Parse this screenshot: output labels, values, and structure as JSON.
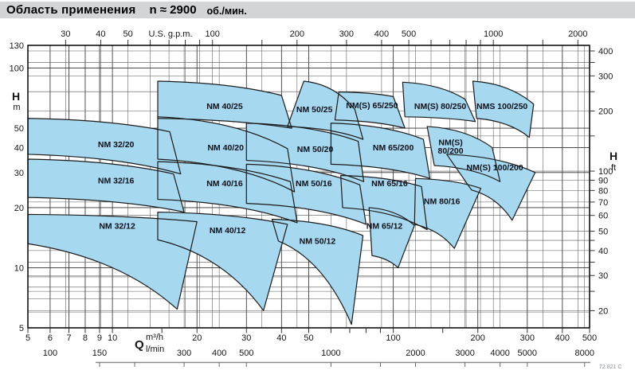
{
  "title": {
    "text": "Область применения",
    "n": "n ≈ 2900",
    "unit": "об./мин."
  },
  "footnote": "72.821 C",
  "chart_data": {
    "type": "area",
    "title": "Область применения n ≈ 2900 об./мин.",
    "x_scale": "log",
    "y_scale": "log",
    "axes": {
      "top": {
        "label": "U.S. g.p.m.",
        "unit": "US gpm",
        "ticks": [
          30,
          40,
          50,
          60,
          70,
          80,
          90,
          100,
          150,
          200,
          300,
          400,
          500,
          600,
          700,
          800,
          900,
          1000,
          1500,
          2000
        ],
        "labeled": [
          30,
          40,
          50,
          100,
          200,
          300,
          400,
          500,
          1000,
          2000
        ]
      },
      "bottom_m3h": {
        "unit": "m³/h",
        "range": [
          5,
          500
        ],
        "ticks": [
          5,
          6,
          7,
          8,
          9,
          10,
          15,
          20,
          30,
          40,
          50,
          60,
          70,
          80,
          90,
          100,
          150,
          200,
          300,
          400,
          500
        ],
        "labeled": [
          5,
          6,
          7,
          8,
          9,
          10,
          20,
          30,
          40,
          50,
          100,
          200,
          300,
          400,
          500
        ]
      },
      "bottom_lmin": {
        "unit": "l/min",
        "labeled": [
          100,
          150,
          300,
          400,
          500,
          1000,
          2000,
          3000,
          4000,
          5000,
          8000
        ],
        "bar_ticks": [
          150,
          200,
          300,
          400,
          500,
          1000,
          1500,
          2000,
          3000,
          4000,
          5000,
          8000
        ]
      },
      "left_m": {
        "symbol": "H",
        "unit": "m",
        "range": [
          5,
          130
        ],
        "labeled": [
          5,
          10,
          20,
          30,
          40,
          50,
          100,
          130
        ],
        "minor": [
          6,
          7,
          8,
          9
        ]
      },
      "right_ft": {
        "symbol": "H",
        "unit": "ft",
        "ticks": [
          20,
          25,
          30,
          35,
          40,
          45,
          50,
          60,
          70,
          80,
          90,
          100,
          150,
          200,
          250,
          300,
          350,
          400
        ],
        "labeled": [
          20,
          30,
          40,
          50,
          60,
          70,
          80,
          90,
          100,
          200,
          300,
          400
        ]
      },
      "q_symbol": "Q"
    },
    "regions": [
      {
        "name": "NM 32/20",
        "labels": [
          "NM 32/20"
        ],
        "tl": [
          5,
          56
        ],
        "tr": [
          16,
          48
        ],
        "br": [
          17.5,
          29.5
        ],
        "bl": [
          5,
          37
        ],
        "pointed": false,
        "label_at": [
          10.3,
          41.5
        ]
      },
      {
        "name": "NM 32/16",
        "labels": [
          "NM 32/16"
        ],
        "tl": [
          5,
          35
        ],
        "tr": [
          16.5,
          29.5
        ],
        "br": [
          18,
          19
        ],
        "bl": [
          5,
          22.5
        ],
        "pointed": false,
        "label_at": [
          10.3,
          27.3
        ]
      },
      {
        "name": "NM 32/12",
        "labels": [
          "NM 32/12"
        ],
        "tl": [
          5,
          18.5
        ],
        "tr": [
          20,
          17
        ],
        "br": [
          17,
          6.2
        ],
        "bl": [
          5,
          13.2
        ],
        "pointed": true,
        "label_at": [
          10.4,
          16.2
        ]
      },
      {
        "name": "NM 40/25",
        "labels": [
          "NM 40/25"
        ],
        "tl": [
          14.5,
          86
        ],
        "tr": [
          40,
          73
        ],
        "br": [
          43.5,
          50
        ],
        "bl": [
          14.5,
          56
        ],
        "pointed": false,
        "label_at": [
          25.1,
          64.3
        ]
      },
      {
        "name": "NM 40/20",
        "labels": [
          "NM 40/20"
        ],
        "tl": [
          14.5,
          57
        ],
        "tr": [
          42,
          39.5
        ],
        "br": [
          44.5,
          24
        ],
        "bl": [
          14.5,
          35
        ],
        "pointed": false,
        "label_at": [
          25.3,
          40
        ]
      },
      {
        "name": "NM 40/16",
        "labels": [
          "NM 40/16"
        ],
        "tl": [
          14.5,
          34
        ],
        "tr": [
          43,
          27
        ],
        "br": [
          45.5,
          16.8
        ],
        "bl": [
          14.5,
          22
        ],
        "pointed": false,
        "label_at": [
          25.1,
          26.4
        ]
      },
      {
        "name": "NM 40/12",
        "labels": [
          "NM 40/12"
        ],
        "tl": [
          14.5,
          19
        ],
        "tr": [
          42,
          16.5
        ],
        "br": [
          34.5,
          6.1
        ],
        "bl": [
          14.5,
          13.8
        ],
        "pointed": true,
        "label_at": [
          25.7,
          15.4
        ]
      },
      {
        "name": "NM 50/25",
        "labels": [
          "NM 50/25"
        ],
        "tl": [
          48,
          86
        ],
        "tr": [
          73,
          62
        ],
        "br": [
          78,
          44
        ],
        "bl": [
          42,
          51
        ],
        "pointed": false,
        "label_at": [
          52.4,
          62
        ]
      },
      {
        "name": "NM 50/20",
        "labels": [
          "NM 50/20"
        ],
        "tl": [
          30,
          53
        ],
        "tr": [
          75,
          43
        ],
        "br": [
          78.5,
          27
        ],
        "bl": [
          30,
          34.5
        ],
        "pointed": false,
        "label_at": [
          52.7,
          39.2
        ]
      },
      {
        "name": "NM 50/16",
        "labels": [
          "NM 50/16"
        ],
        "tl": [
          30,
          33
        ],
        "tr": [
          76,
          26
        ],
        "br": [
          80,
          16.5
        ],
        "bl": [
          30,
          21
        ],
        "pointed": false,
        "label_at": [
          52.1,
          26.4
        ]
      },
      {
        "name": "NM 50/12",
        "labels": [
          "NM 50/12"
        ],
        "tl": [
          37,
          17.5
        ],
        "tr": [
          78,
          14.5
        ],
        "br": [
          71,
          5.2
        ],
        "bl": [
          39,
          13.6
        ],
        "pointed": true,
        "label_at": [
          53.7,
          13.6
        ]
      },
      {
        "name": "NM(S) 65/250",
        "labels": [
          "NM(S) 65/250"
        ],
        "tl": [
          64,
          76
        ],
        "tr": [
          100,
          72
        ],
        "br": [
          110,
          50
        ],
        "bl": [
          62,
          55
        ],
        "pointed": false,
        "label_at": [
          84,
          65
        ]
      },
      {
        "name": "NM 65/200",
        "labels": [
          "NM 65/200"
        ],
        "tl": [
          60,
          53
        ],
        "tr": [
          128,
          44
        ],
        "br": [
          135,
          28
        ],
        "bl": [
          60,
          33
        ],
        "pointed": false,
        "label_at": [
          100,
          40
        ]
      },
      {
        "name": "NM 65/16",
        "labels": [
          "NM 65/16"
        ],
        "tl": [
          65,
          29
        ],
        "tr": [
          126,
          25.5
        ],
        "br": [
          132,
          15.5
        ],
        "bl": [
          66,
          20
        ],
        "pointed": false,
        "label_at": [
          97,
          26.4
        ]
      },
      {
        "name": "NM 65/12",
        "labels": [
          "NM 65/12"
        ],
        "tl": [
          82,
          20
        ],
        "tr": [
          119,
          16.3
        ],
        "br": [
          104,
          10
        ],
        "bl": [
          84,
          11.5
        ],
        "pointed": true,
        "label_at": [
          93,
          16.2
        ]
      },
      {
        "name": "NM(S) 80/250",
        "labels": [
          "NM(S) 80/250"
        ],
        "tl": [
          108,
          85
        ],
        "tr": [
          180,
          70
        ],
        "br": [
          196,
          54
        ],
        "bl": [
          110,
          57
        ],
        "pointed": false,
        "label_at": [
          147,
          64.5
        ]
      },
      {
        "name": "NM(S) 80/200",
        "labels": [
          "NM(S)",
          "80/200"
        ],
        "tl": [
          132,
          51
        ],
        "tr": [
          225,
          40
        ],
        "br": [
          240,
          27
        ],
        "bl": [
          140,
          32.5
        ],
        "pointed": false,
        "label_at": [
          160,
          40.5
        ]
      },
      {
        "name": "NM 80/16",
        "labels": [
          "NM 80/16"
        ],
        "tl": [
          120,
          28
        ],
        "tr": [
          205,
          25
        ],
        "br": [
          165,
          12.5
        ],
        "bl": [
          119,
          16.5
        ],
        "pointed": true,
        "label_at": [
          149,
          21.5
        ]
      },
      {
        "name": "NMS 100/250",
        "labels": [
          "NMS 100/250"
        ],
        "tl": [
          192,
          86
        ],
        "tr": [
          316,
          66
        ],
        "br": [
          305,
          45
        ],
        "bl": [
          198,
          56
        ],
        "pointed": false,
        "label_at": [
          244,
          64.5
        ]
      },
      {
        "name": "NM(S) 100/200",
        "labels": [
          "NM(S) 100/200"
        ],
        "tl": [
          155,
          37
        ],
        "tr": [
          320,
          30
        ],
        "br": [
          265,
          17.3
        ],
        "bl": [
          190,
          24.5
        ],
        "pointed": true,
        "label_at": [
          230,
          31.8
        ]
      }
    ],
    "style": {
      "region_fill": "#a6d8ef",
      "region_stroke": "#1b1b1b",
      "grid_minor": "#565656",
      "grid_major": "#333333",
      "border": "#000000",
      "bar_line": "#8a8a8a"
    }
  }
}
